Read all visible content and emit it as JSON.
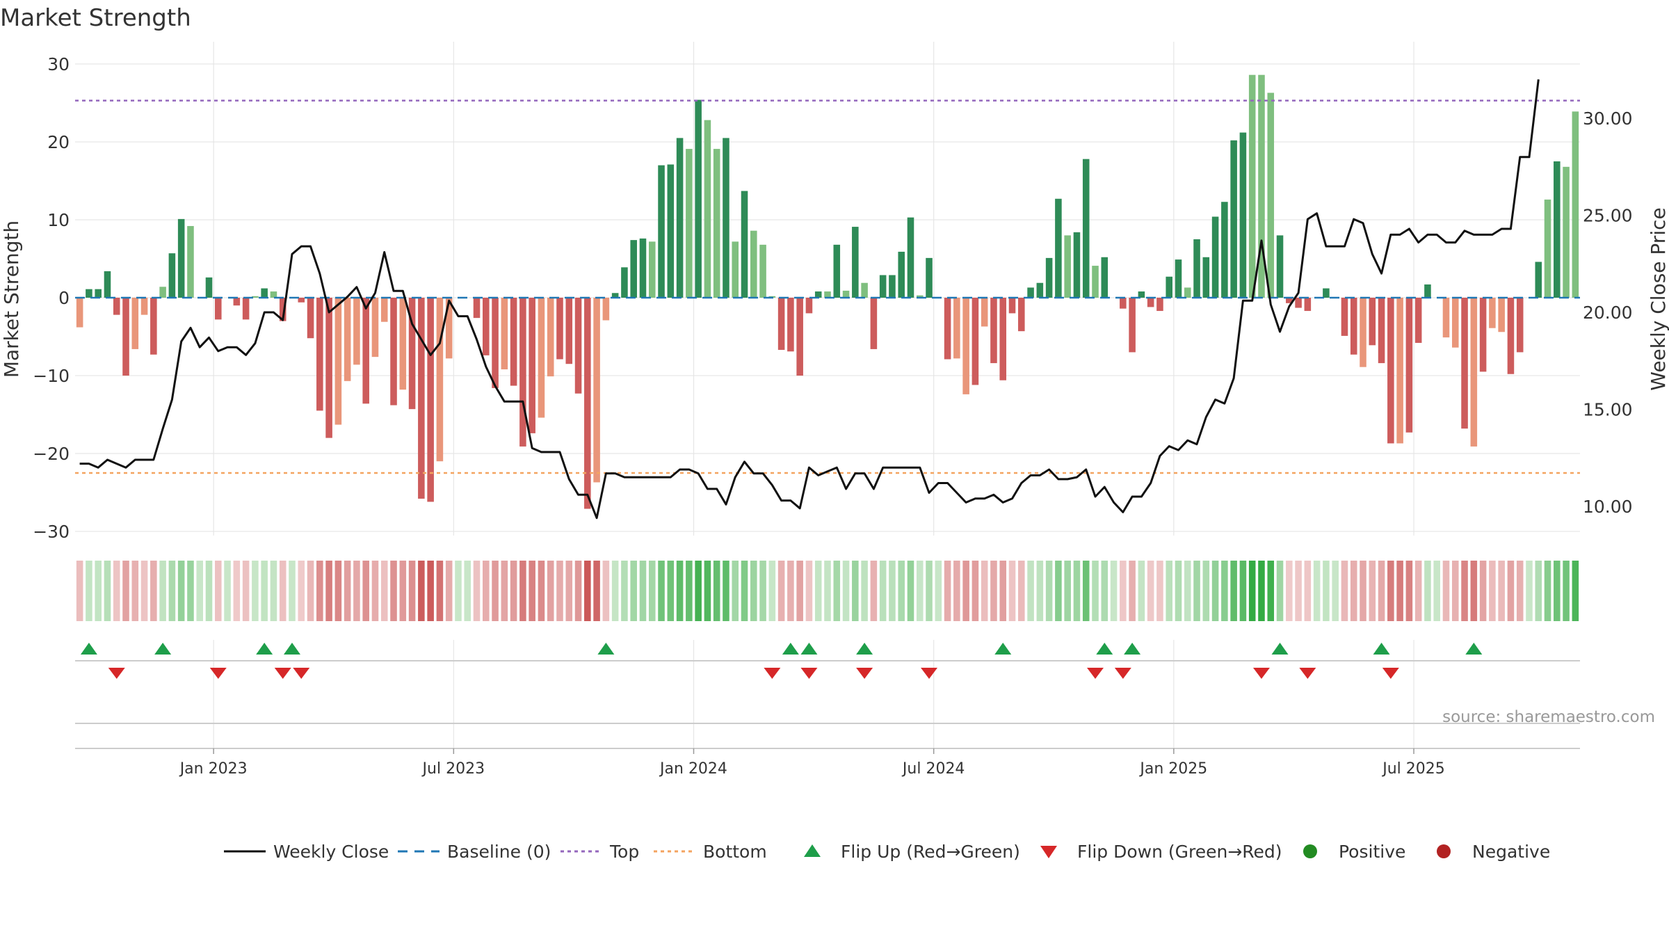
{
  "title": "Market Strength",
  "source": "source: sharemaestro.com",
  "colors": {
    "bar_green_dark": "#2e8b57",
    "bar_green_light": "#7fbf7f",
    "bar_red_dark": "#cd5c5c",
    "bar_red_light": "#e9967a",
    "price_line": "#111111",
    "baseline": "#1f77b4",
    "top_line": "#9467bd",
    "bottom_line": "#f4a460",
    "flip_up": "#1e9e4a",
    "flip_down": "#d62728",
    "grid": "#e6e6e6"
  },
  "chart_data": {
    "type": "bar",
    "title": "Market Strength",
    "ylabel": "Market Strength",
    "y2label": "Weekly Close Price",
    "ylim": [
      -32,
      30
    ],
    "y2lim": [
      8.8,
      32.5
    ],
    "y_ticks": [
      30,
      20,
      10,
      0,
      -10,
      -20,
      -30
    ],
    "y_tick_labels": [
      "30",
      "20",
      "10",
      "0",
      "−10",
      "−20",
      "−30"
    ],
    "y2_ticks": [
      30,
      25,
      20,
      15,
      10
    ],
    "y2_tick_labels": [
      "30.00",
      "25.00",
      "20.00",
      "15.00",
      "10.00"
    ],
    "x_tick_labels": [
      "Jan 2023",
      "Jul 2023",
      "Jan 2024",
      "Jul 2024",
      "Jan 2025",
      "Jul 2025"
    ],
    "x_tick_weeks": [
      14.5,
      40.5,
      66.5,
      92.5,
      118.5,
      144.5
    ],
    "top_level": 25.3,
    "bottom_level": -22.5,
    "baseline": 0,
    "strength": [
      -3.8,
      1.1,
      1.1,
      3.4,
      -2.2,
      -10,
      -6.6,
      -2.2,
      -7.3,
      1.4,
      5.7,
      10.1,
      9.2,
      0,
      2.6,
      -2.8,
      0,
      -1,
      -2.8,
      0.2,
      1.2,
      0.8,
      -3,
      0,
      -0.6,
      -5.2,
      -14.5,
      -18,
      -16.3,
      -10.7,
      -8.6,
      -13.6,
      -7.6,
      -3.1,
      -13.8,
      -11.8,
      -14.3,
      -25.8,
      -26.2,
      -21,
      -7.8,
      0,
      0,
      -2.6,
      -7.4,
      -11.6,
      -9.2,
      -11.3,
      -19.1,
      -17.4,
      -15.4,
      -10.1,
      -7.9,
      -8.5,
      -12.3,
      -27.1,
      -23.7,
      -2.9,
      0.6,
      3.9,
      7.4,
      7.6,
      7.2,
      17,
      17.1,
      20.5,
      19.1,
      25.4,
      22.8,
      19.1,
      20.5,
      7.2,
      13.7,
      8.6,
      6.8,
      0.2,
      -6.7,
      -6.9,
      -10,
      -2,
      0.8,
      0.8,
      6.8,
      0.9,
      9.1,
      1.9,
      -6.6,
      2.9,
      2.9,
      5.9,
      10.3,
      0.3,
      5.1,
      0,
      -7.9,
      -7.8,
      -12.4,
      -11.2,
      -3.7,
      -8.4,
      -10.6,
      -2,
      -4.3,
      1.3,
      1.9,
      5.1,
      12.7,
      8,
      8.4,
      17.8,
      4.1,
      5.2,
      0,
      -1.4,
      -7,
      0.8,
      -1.2,
      -1.7,
      2.7,
      4.9,
      1.3,
      7.5,
      5.2,
      10.4,
      12.3,
      20.2,
      21.2,
      28.6,
      28.6,
      26.3,
      8,
      -0.7,
      -1.3,
      -1.7,
      0,
      1.2,
      0,
      -4.9,
      -7.3,
      -8.9,
      -6.1,
      -8.4,
      -18.7,
      -18.7,
      -17.3,
      -5.8,
      1.7,
      0,
      -5.1,
      -6.4,
      -16.8,
      -19.1,
      -9.5,
      -3.9,
      -4.4,
      -9.8,
      -7,
      0,
      4.6,
      12.6,
      17.5,
      16.8,
      23.9
    ],
    "strength_shade": [
      0,
      1,
      1,
      1,
      1,
      1,
      0,
      0,
      1,
      0,
      1,
      1,
      0,
      0,
      1,
      1,
      0,
      1,
      1,
      0,
      1,
      0,
      1,
      0,
      1,
      1,
      1,
      1,
      0,
      0,
      0,
      1,
      0,
      0,
      1,
      0,
      1,
      1,
      1,
      0,
      0,
      0,
      0,
      1,
      1,
      1,
      0,
      1,
      1,
      1,
      0,
      0,
      1,
      1,
      1,
      1,
      0,
      0,
      1,
      1,
      1,
      1,
      0,
      1,
      1,
      1,
      0,
      1,
      0,
      0,
      1,
      0,
      1,
      0,
      0,
      0,
      1,
      1,
      1,
      1,
      1,
      0,
      1,
      0,
      1,
      0,
      1,
      1,
      1,
      1,
      1,
      0,
      1,
      0,
      1,
      0,
      0,
      1,
      0,
      1,
      1,
      1,
      1,
      1,
      1,
      1,
      1,
      0,
      1,
      1,
      0,
      1,
      0,
      1,
      1,
      1,
      1,
      1,
      1,
      1,
      0,
      1,
      1,
      1,
      1,
      1,
      1,
      0,
      0,
      0,
      1,
      1,
      1,
      1,
      0,
      1,
      1,
      1,
      1,
      0,
      1,
      1,
      1,
      0,
      1,
      1,
      1,
      1,
      0,
      0,
      1,
      0,
      1,
      0,
      0,
      1,
      1,
      1,
      1,
      0,
      1
    ],
    "weekly_close": [
      12.2,
      12.2,
      12,
      12.4,
      12.2,
      12,
      12.4,
      12.4,
      12.4,
      14,
      15.5,
      18.5,
      19.2,
      18.2,
      18.7,
      18.0,
      18.2,
      18.2,
      17.8,
      18.4,
      20,
      20,
      19.6,
      23,
      23.4,
      23.4,
      22,
      20,
      20.4,
      20.8,
      21.3,
      20.2,
      21,
      23.1,
      21.1,
      21.1,
      19.4,
      18.6,
      17.8,
      18.4,
      20.6,
      19.8,
      19.8,
      18.6,
      17.2,
      16.2,
      15.4,
      15.4,
      15.4,
      13,
      12.8,
      12.8,
      12.8,
      11.4,
      10.6,
      10.6,
      9.4,
      11.7,
      11.7,
      11.5,
      11.5,
      11.5,
      11.5,
      11.5,
      11.5,
      11.9,
      11.9,
      11.7,
      10.9,
      10.9,
      10.1,
      11.5,
      12.3,
      11.7,
      11.7,
      11.1,
      10.3,
      10.3,
      9.9,
      12.0,
      11.6,
      11.8,
      12.0,
      10.9,
      11.7,
      11.7,
      10.9,
      12.0,
      12.0,
      12.0,
      12.0,
      12.0,
      10.7,
      11.2,
      11.2,
      10.7,
      10.2,
      10.4,
      10.4,
      10.6,
      10.2,
      10.4,
      11.2,
      11.6,
      11.6,
      11.9,
      11.4,
      11.4,
      11.5,
      11.9,
      10.5,
      11.0,
      10.2,
      9.7,
      10.5,
      10.5,
      11.2,
      12.6,
      13.1,
      12.9,
      13.4,
      13.2,
      14.6,
      15.5,
      15.3,
      16.6,
      20.6,
      20.6,
      23.7,
      20.4,
      19.0,
      20.3,
      21.0,
      24.8,
      25.1,
      23.4,
      23.4,
      23.4,
      24.8,
      24.6,
      23.0,
      22.0,
      24.0,
      24.0,
      24.3,
      23.6,
      24.0,
      24.0,
      23.6,
      23.6,
      24.2,
      24.0,
      24.0,
      24.0,
      24.3,
      24.3,
      28.0,
      28.0,
      32.0
    ],
    "flip_up_weeks": [
      1,
      9,
      20,
      23,
      57,
      77,
      79,
      85,
      100,
      111,
      114,
      130,
      141,
      151
    ],
    "flip_down_weeks": [
      4,
      15,
      22,
      24,
      75,
      79,
      85,
      92,
      110,
      113,
      128,
      133,
      142
    ]
  },
  "legend": [
    {
      "label": "Weekly Close",
      "kind": "line",
      "color": "#111111"
    },
    {
      "label": "Baseline (0)",
      "kind": "dash",
      "color": "#1f77b4"
    },
    {
      "label": "Top",
      "kind": "dot",
      "color": "#9467bd"
    },
    {
      "label": "Bottom",
      "kind": "dot",
      "color": "#f4a460"
    },
    {
      "label": "Flip Up (Red→Green)",
      "kind": "tri-up",
      "color": "#1e9e4a"
    },
    {
      "label": "Flip Down (Green→Red)",
      "kind": "tri-down",
      "color": "#d62728"
    },
    {
      "label": "Positive",
      "kind": "circle",
      "color": "#228b22"
    },
    {
      "label": "Negative",
      "kind": "circle",
      "color": "#b22222"
    }
  ]
}
